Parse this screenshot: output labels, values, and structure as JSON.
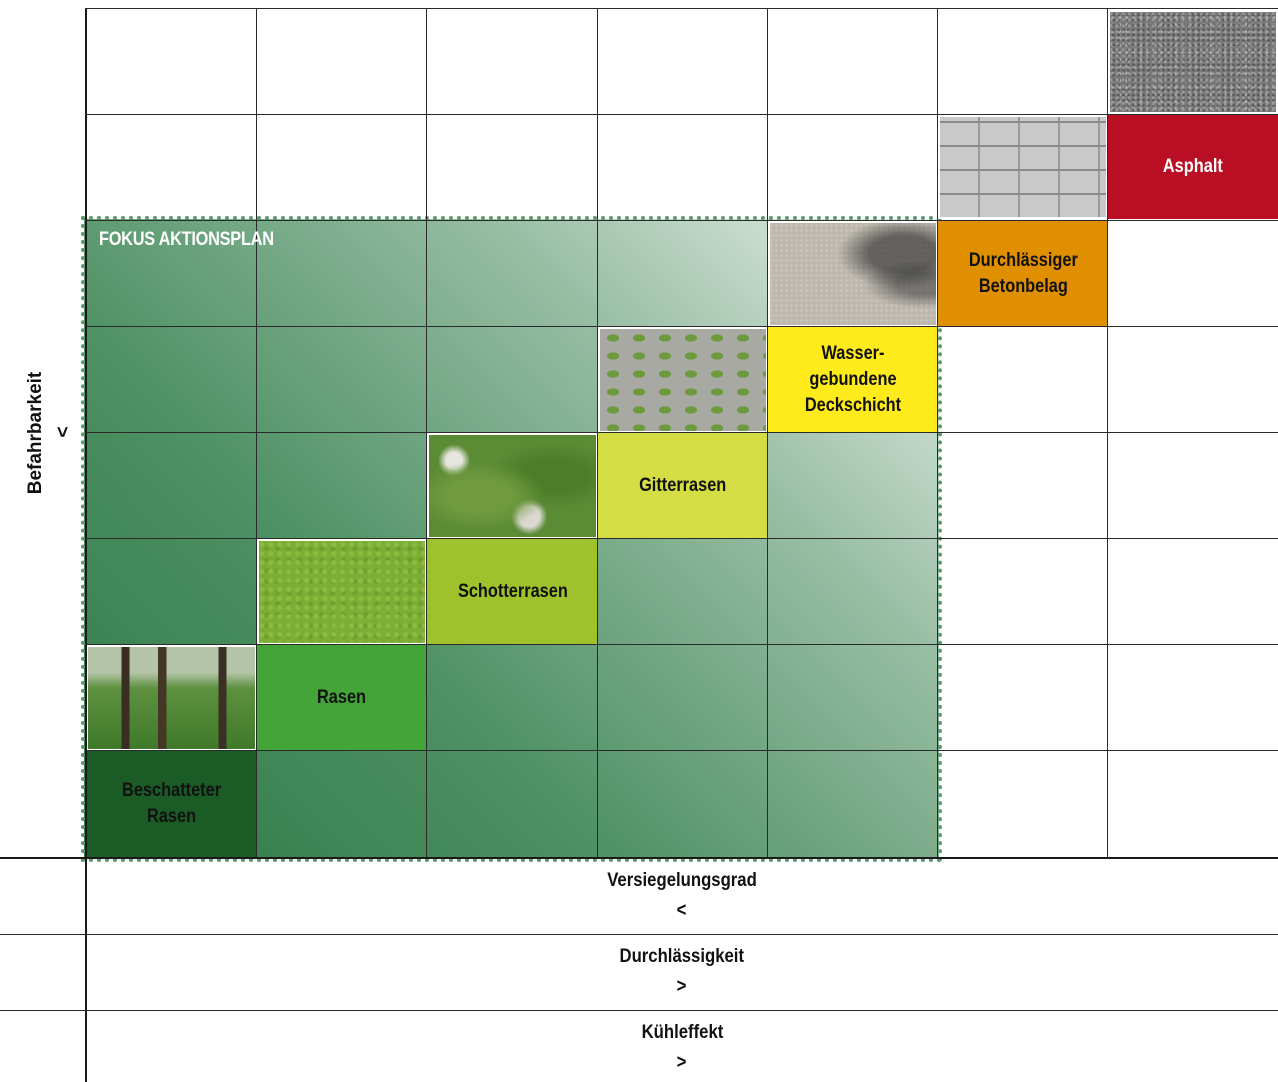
{
  "focus_label": "FOKUS AKTIONSPLAN",
  "y_axis": {
    "label": "Befahrbarkeit",
    "arrow": "<"
  },
  "cells": [
    {
      "id": "asphalt",
      "label": "Asphalt",
      "color": "#b90e23",
      "text_color": "#ffffff"
    },
    {
      "id": "betonbelag",
      "label": "Durchlässiger\nBetonbelag",
      "color": "#e08f00",
      "text_color": "#111111"
    },
    {
      "id": "deckschicht",
      "label": "Wasser-\ngebundene\nDeckschicht",
      "color": "#ffea1c",
      "text_color": "#111111"
    },
    {
      "id": "gitterrasen",
      "label": "Gitterrasen",
      "color": "#d4dd44",
      "text_color": "#111111"
    },
    {
      "id": "schotterrasen",
      "label": "Schotterrasen",
      "color": "#9fc12c",
      "text_color": "#111111"
    },
    {
      "id": "rasen",
      "label": "Rasen",
      "color": "#43a537",
      "text_color": "#111111"
    },
    {
      "id": "beschatteter",
      "label": "Beschatteter\nRasen",
      "color": "#1a5b26",
      "text_color": "#111111"
    }
  ],
  "photos": [
    {
      "id": "asphalt-photo",
      "icon": "asphalt-texture"
    },
    {
      "id": "pavers-photo",
      "icon": "paving-stones"
    },
    {
      "id": "concrete-photo",
      "icon": "permeable-concrete"
    },
    {
      "id": "grid-photo",
      "icon": "grass-pavers"
    },
    {
      "id": "gravel-photo",
      "icon": "gravel-lawn"
    },
    {
      "id": "lawn-photo",
      "icon": "lawn"
    },
    {
      "id": "shaded-photo",
      "icon": "shaded-lawn-trees"
    }
  ],
  "bottom_rows": [
    {
      "label": "Versiegelungsgrad",
      "arrow": "<"
    },
    {
      "label": "Durchlässigkeit",
      "arrow": ">"
    },
    {
      "label": "Kühleffekt",
      "arrow": ">"
    }
  ]
}
